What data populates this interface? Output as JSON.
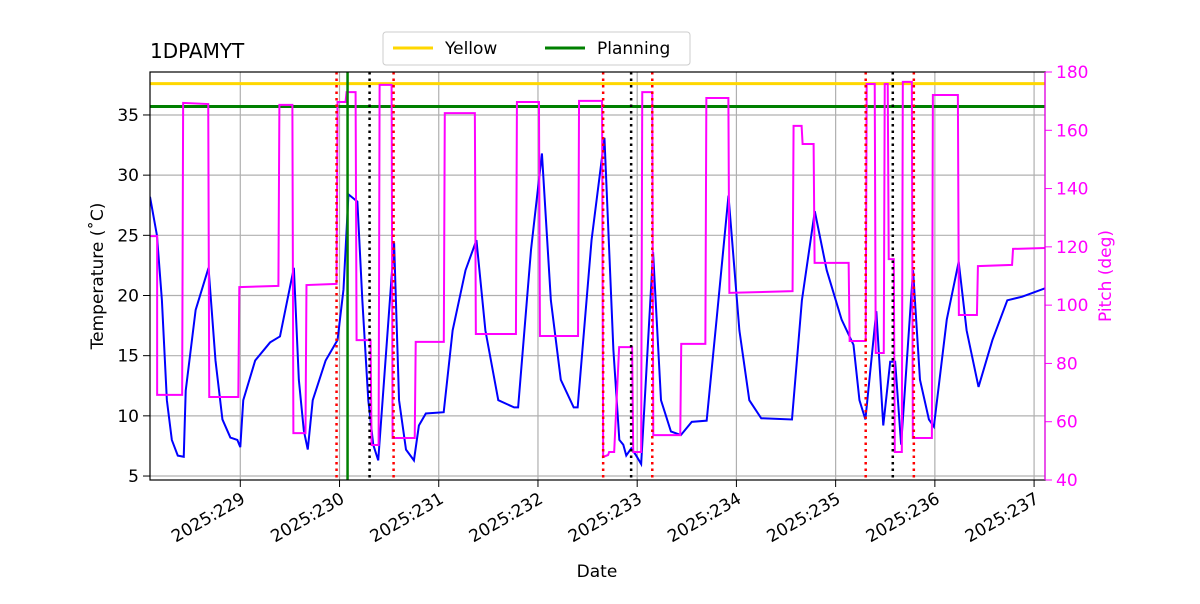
{
  "chart_data": {
    "type": "line",
    "title": "1DPAMYT",
    "xlabel": "Date",
    "ylabel": "Temperature (˚C)",
    "y2label": "Pitch (deg)",
    "xlim": [
      228.09,
      237.11
    ],
    "ylim": [
      4.67,
      38.57
    ],
    "y2lim": [
      40,
      180
    ],
    "xticks": [
      {
        "value": 229,
        "label": "2025:229"
      },
      {
        "value": 230,
        "label": "2025:230"
      },
      {
        "value": 231,
        "label": "2025:231"
      },
      {
        "value": 232,
        "label": "2025:232"
      },
      {
        "value": 233,
        "label": "2025:233"
      },
      {
        "value": 234,
        "label": "2025:234"
      },
      {
        "value": 235,
        "label": "2025:235"
      },
      {
        "value": 236,
        "label": "2025:236"
      },
      {
        "value": 237,
        "label": "2025:237"
      }
    ],
    "yticks": [
      5,
      10,
      15,
      20,
      25,
      30,
      35
    ],
    "y2ticks": [
      40,
      60,
      80,
      100,
      120,
      140,
      160,
      180
    ],
    "grid": true,
    "legend": "top center",
    "y2color": "#ff00ff",
    "hlines": [
      {
        "name": "Yellow",
        "color": "#ffd700",
        "value": 37.6
      },
      {
        "name": "Planning",
        "color": "#008000",
        "value": 35.7
      }
    ],
    "vlines": [
      {
        "x": 229.97,
        "color": "#ff0000",
        "style": "dotted"
      },
      {
        "x": 230.545,
        "color": "#ff0000",
        "style": "dotted"
      },
      {
        "x": 232.657,
        "color": "#ff0000",
        "style": "dotted"
      },
      {
        "x": 233.152,
        "color": "#ff0000",
        "style": "dotted"
      },
      {
        "x": 235.303,
        "color": "#ff0000",
        "style": "dotted"
      },
      {
        "x": 235.788,
        "color": "#ff0000",
        "style": "dotted"
      },
      {
        "x": 230.303,
        "color": "#000000",
        "style": "dotted"
      },
      {
        "x": 232.939,
        "color": "#000000",
        "style": "dotted"
      },
      {
        "x": 235.576,
        "color": "#000000",
        "style": "dotted"
      },
      {
        "x": 230.081,
        "color": "#008000",
        "style": "solid"
      }
    ],
    "series": [
      {
        "color": "#0000ff",
        "x": [
          228.09,
          228.16,
          228.21,
          228.26,
          228.31,
          228.37,
          228.43,
          228.45,
          228.55,
          228.68,
          228.75,
          228.82,
          228.9,
          228.97,
          229.0,
          229.03,
          229.15,
          229.3,
          229.4,
          229.54,
          229.59,
          229.64,
          229.68,
          229.73,
          229.86,
          229.98,
          230.04,
          230.09,
          230.18,
          230.23,
          230.29,
          230.34,
          230.39,
          230.55,
          230.6,
          230.67,
          230.75,
          230.8,
          230.87,
          231.05,
          231.14,
          231.27,
          231.38,
          231.47,
          231.6,
          231.76,
          231.8,
          231.93,
          232.04,
          232.13,
          232.23,
          232.36,
          232.4,
          232.54,
          232.67,
          232.76,
          232.82,
          232.86,
          232.89,
          232.94,
          232.99,
          233.04,
          233.16,
          233.24,
          233.34,
          233.44,
          233.55,
          233.7,
          233.8,
          233.92,
          234.03,
          234.13,
          234.25,
          234.56,
          234.66,
          234.79,
          234.91,
          235.06,
          235.18,
          235.24,
          235.3,
          235.41,
          235.48,
          235.55,
          235.6,
          235.66,
          235.78,
          235.85,
          235.94,
          235.99,
          236.12,
          236.24,
          236.32,
          236.44,
          236.58,
          236.73,
          236.88,
          237.11
        ],
        "values": [
          28.2,
          25.0,
          19.6,
          11.3,
          8.0,
          6.7,
          6.6,
          12.1,
          18.8,
          22.3,
          14.6,
          9.7,
          8.2,
          8.0,
          7.4,
          11.3,
          14.6,
          16.1,
          16.6,
          22.3,
          13.0,
          8.8,
          7.2,
          11.3,
          14.6,
          16.3,
          20.5,
          28.4,
          27.8,
          19.6,
          11.3,
          7.6,
          6.3,
          24.4,
          11.3,
          7.2,
          6.3,
          9.2,
          10.2,
          10.3,
          17.1,
          22.1,
          24.6,
          17.1,
          11.3,
          10.7,
          10.7,
          23.8,
          31.8,
          19.6,
          13.0,
          10.7,
          10.7,
          24.6,
          33.1,
          15.5,
          8.0,
          7.6,
          6.7,
          7.3,
          6.7,
          6.0,
          23.6,
          11.3,
          8.7,
          8.4,
          9.5,
          9.6,
          18.0,
          28.3,
          17.1,
          11.3,
          9.8,
          9.7,
          19.6,
          27.0,
          22.1,
          18.0,
          15.9,
          11.3,
          9.7,
          18.7,
          9.2,
          14.5,
          14.5,
          7.6,
          22.1,
          13.0,
          9.7,
          9.1,
          18.0,
          22.8,
          17.1,
          12.4,
          16.3,
          19.6,
          19.9,
          20.6
        ]
      },
      {
        "color": "#ff00ff",
        "axis": "y2",
        "x": [
          228.091,
          228.162,
          228.162,
          228.414,
          228.424,
          228.677,
          228.687,
          228.98,
          228.99,
          229.384,
          229.394,
          229.525,
          229.535,
          229.657,
          229.667,
          229.97,
          229.98,
          230.061,
          230.071,
          230.162,
          230.172,
          230.313,
          230.323,
          230.394,
          230.404,
          230.525,
          230.535,
          230.758,
          230.768,
          231.051,
          231.061,
          231.364,
          231.374,
          231.778,
          231.788,
          232.01,
          232.02,
          232.404,
          232.414,
          232.646,
          232.657,
          232.707,
          232.717,
          232.768,
          232.818,
          232.949,
          232.96,
          233.04,
          233.051,
          233.152,
          233.162,
          233.434,
          233.444,
          233.687,
          233.697,
          233.919,
          233.929,
          234.566,
          234.576,
          234.657,
          234.667,
          234.778,
          234.788,
          235.131,
          235.141,
          235.303,
          235.313,
          235.394,
          235.404,
          235.485,
          235.495,
          235.525,
          235.535,
          235.586,
          235.596,
          235.667,
          235.677,
          235.768,
          235.778,
          235.97,
          235.98,
          236.232,
          236.242,
          236.424,
          236.434,
          236.778,
          236.788,
          237.111
        ],
        "values": [
          123.7,
          123.7,
          69.2,
          69.2,
          169.4,
          169.0,
          68.5,
          68.5,
          106.2,
          106.6,
          168.7,
          168.7,
          56.1,
          56.1,
          106.9,
          107.3,
          169.7,
          169.7,
          173.1,
          173.1,
          88.0,
          88.0,
          52.0,
          52.0,
          175.6,
          175.6,
          54.4,
          54.4,
          87.4,
          87.4,
          165.9,
          165.9,
          90.1,
          90.1,
          169.7,
          169.7,
          89.4,
          89.4,
          170.1,
          170.1,
          47.9,
          48.6,
          49.6,
          49.6,
          85.6,
          85.6,
          49.6,
          49.6,
          173.1,
          173.1,
          55.4,
          55.4,
          86.7,
          86.7,
          171.1,
          171.1,
          104.2,
          104.8,
          161.5,
          161.5,
          155.3,
          155.3,
          114.5,
          114.5,
          87.7,
          87.7,
          175.9,
          175.9,
          83.6,
          83.6,
          175.9,
          175.9,
          115.8,
          115.8,
          49.6,
          49.6,
          176.6,
          176.6,
          54.4,
          54.4,
          172.1,
          172.1,
          96.6,
          96.6,
          113.4,
          113.8,
          119.3,
          119.6
        ]
      }
    ]
  }
}
